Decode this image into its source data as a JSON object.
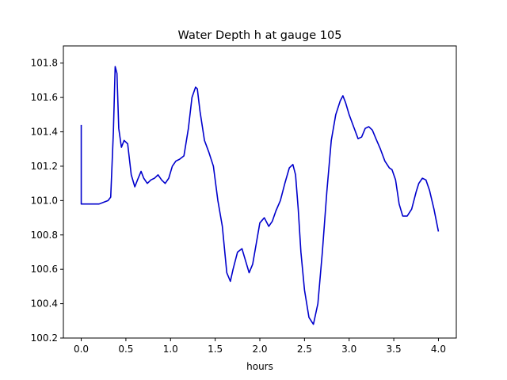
{
  "chart_data": {
    "type": "line",
    "title": "Water Depth h at gauge 105",
    "xlabel": "hours",
    "ylabel": "",
    "xlim": [
      -0.2,
      4.2
    ],
    "ylim": [
      100.2,
      101.9
    ],
    "xticks": [
      0.0,
      0.5,
      1.0,
      1.5,
      2.0,
      2.5,
      3.0,
      3.5,
      4.0
    ],
    "xtick_labels": [
      "0.0",
      "0.5",
      "1.0",
      "1.5",
      "2.0",
      "2.5",
      "3.0",
      "3.5",
      "4.0"
    ],
    "yticks": [
      100.2,
      100.4,
      100.6,
      100.8,
      101.0,
      101.2,
      101.4,
      101.6,
      101.8
    ],
    "ytick_labels": [
      "100.2",
      "100.4",
      "100.6",
      "100.8",
      "101.0",
      "101.2",
      "101.4",
      "101.6",
      "101.8"
    ],
    "grid": false,
    "legend": "none",
    "line_color": "#0000cc",
    "series": [
      {
        "x": [
          0.0,
          0.0,
          0.1,
          0.2,
          0.3,
          0.33,
          0.36,
          0.38,
          0.4,
          0.42,
          0.45,
          0.48,
          0.52,
          0.56,
          0.6,
          0.63,
          0.67,
          0.7,
          0.74,
          0.78,
          0.82,
          0.86,
          0.9,
          0.94,
          0.98,
          1.02,
          1.06,
          1.1,
          1.15,
          1.2,
          1.24,
          1.28,
          1.3,
          1.33,
          1.38,
          1.43,
          1.48,
          1.53,
          1.58,
          1.63,
          1.67,
          1.7,
          1.75,
          1.8,
          1.84,
          1.88,
          1.92,
          1.96,
          2.0,
          2.05,
          2.1,
          2.14,
          2.18,
          2.23,
          2.28,
          2.33,
          2.37,
          2.4,
          2.43,
          2.46,
          2.5,
          2.55,
          2.6,
          2.65,
          2.7,
          2.75,
          2.8,
          2.85,
          2.9,
          2.93,
          2.96,
          3.0,
          3.05,
          3.1,
          3.14,
          3.18,
          3.22,
          3.26,
          3.3,
          3.35,
          3.4,
          3.45,
          3.48,
          3.52,
          3.56,
          3.6,
          3.65,
          3.7,
          3.75,
          3.78,
          3.82,
          3.86,
          3.9,
          3.95,
          4.0
        ],
        "y": [
          101.44,
          100.98,
          100.98,
          100.98,
          101.0,
          101.02,
          101.4,
          101.78,
          101.74,
          101.42,
          101.31,
          101.35,
          101.33,
          101.15,
          101.08,
          101.12,
          101.17,
          101.13,
          101.1,
          101.12,
          101.13,
          101.15,
          101.12,
          101.1,
          101.13,
          101.2,
          101.23,
          101.24,
          101.26,
          101.42,
          101.6,
          101.66,
          101.65,
          101.52,
          101.35,
          101.28,
          101.2,
          101.0,
          100.85,
          100.58,
          100.53,
          100.6,
          100.7,
          100.72,
          100.65,
          100.58,
          100.63,
          100.75,
          100.87,
          100.9,
          100.85,
          100.88,
          100.94,
          101.0,
          101.1,
          101.19,
          101.21,
          101.15,
          100.95,
          100.7,
          100.48,
          100.32,
          100.28,
          100.4,
          100.7,
          101.05,
          101.35,
          101.5,
          101.58,
          101.61,
          101.57,
          101.5,
          101.43,
          101.36,
          101.37,
          101.42,
          101.43,
          101.41,
          101.36,
          101.3,
          101.23,
          101.19,
          101.18,
          101.12,
          100.98,
          100.91,
          100.91,
          100.95,
          101.05,
          101.1,
          101.13,
          101.12,
          101.06,
          100.95,
          100.82
        ]
      }
    ]
  }
}
